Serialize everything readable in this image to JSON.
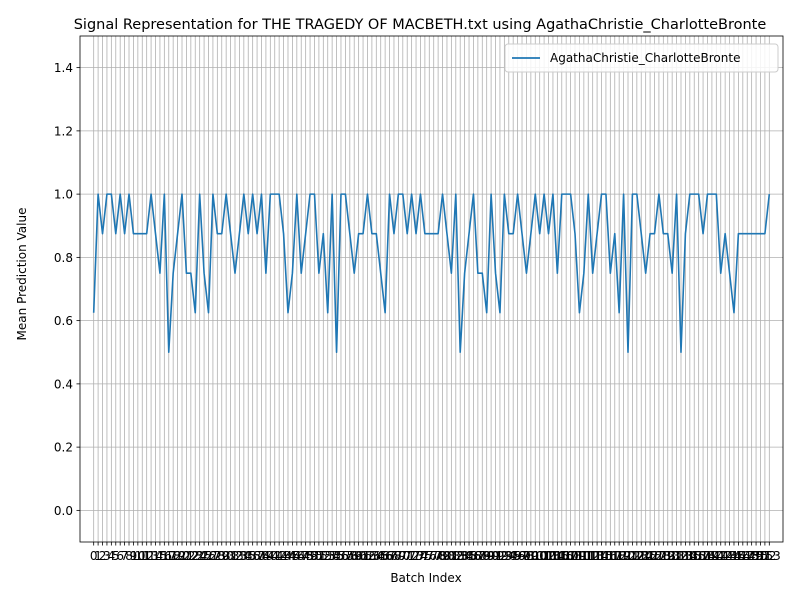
{
  "chart_data": {
    "type": "line",
    "title": "Signal Representation for THE TRAGEDY OF MACBETH.txt using AgathaChristie_CharlotteBronte",
    "xlabel": "Batch Index",
    "ylabel": "Mean Prediction Value",
    "ylim": [
      -0.1,
      1.5
    ],
    "yticks": [
      0.0,
      0.2,
      0.4,
      0.6,
      0.8,
      1.0,
      1.2,
      1.4
    ],
    "xlim": [
      -3.1,
      156.1
    ],
    "grid": true,
    "legend": "top-right",
    "colors": {
      "line": "#1f77b4",
      "grid": "#b0b0b0"
    },
    "xtick_labels_visible": [
      "0",
      "1",
      "2",
      "3",
      "4",
      "5",
      "6",
      "7",
      "8",
      "9",
      "10",
      "11",
      "12",
      "13",
      "14",
      "15",
      "16",
      "17",
      "18",
      "19",
      "20",
      "21",
      "22",
      "23",
      "24",
      "25",
      "26",
      "27",
      "28",
      "29",
      "30",
      "31",
      "32",
      "33",
      "34",
      "35",
      "36",
      "37",
      "38",
      "39",
      "40",
      "41",
      "42",
      "43",
      "44",
      "45",
      "46",
      "47",
      "48",
      "49",
      "50",
      "51",
      "52",
      "53",
      "54",
      "55",
      "56",
      "57",
      "58",
      "59",
      "60",
      "61",
      "62",
      "63",
      "64",
      "65",
      "66",
      "67",
      "68",
      "69",
      "70",
      "71",
      "72",
      "73",
      "74",
      "75",
      "76",
      "77",
      "78",
      "79",
      "80",
      "81",
      "82",
      "83",
      "84",
      "85",
      "86",
      "87",
      "88",
      "89",
      "90",
      "91",
      "92",
      "93",
      "94",
      "95",
      "96",
      "97",
      "98",
      "99",
      "100",
      "101",
      "102",
      "103",
      "104",
      "105",
      "106",
      "107",
      "108",
      "109",
      "110",
      "111",
      "112",
      "113",
      "114",
      "115",
      "116",
      "117",
      "118",
      "119",
      "120",
      "121",
      "122",
      "123",
      "124",
      "125",
      "126",
      "127",
      "128",
      "129",
      "130",
      "131",
      "132",
      "133",
      "134",
      "135",
      "136",
      "137",
      "138",
      "139",
      "140",
      "141",
      "142",
      "143",
      "144",
      "145",
      "146",
      "147",
      "148",
      "149",
      "150",
      "151",
      "152",
      "153"
    ],
    "series": [
      {
        "name": "AgathaChristie_CharlotteBronte",
        "x": [
          0,
          1,
          2,
          3,
          4,
          5,
          6,
          7,
          8,
          9,
          10,
          11,
          12,
          13,
          14,
          15,
          16,
          17,
          18,
          19,
          20,
          21,
          22,
          23,
          24,
          25,
          26,
          27,
          28,
          29,
          30,
          31,
          32,
          33,
          34,
          35,
          36,
          37,
          38,
          39,
          40,
          41,
          42,
          43,
          44,
          45,
          46,
          47,
          48,
          49,
          50,
          51,
          52,
          53,
          54,
          55,
          56,
          57,
          58,
          59,
          60,
          61,
          62,
          63,
          64,
          65,
          66,
          67,
          68,
          69,
          70,
          71,
          72,
          73,
          74,
          75,
          76,
          77,
          78,
          79,
          80,
          81,
          82,
          83,
          84,
          85,
          86,
          87,
          88,
          89,
          90,
          91,
          92,
          93,
          94,
          95,
          96,
          97,
          98,
          99,
          100,
          101,
          102,
          103,
          104,
          105,
          106,
          107,
          108,
          109,
          110,
          111,
          112,
          113,
          114,
          115,
          116,
          117,
          118,
          119,
          120,
          121,
          122,
          123,
          124,
          125,
          126,
          127,
          128,
          129,
          130,
          131,
          132,
          133,
          134,
          135,
          136,
          137,
          138,
          139,
          140,
          141,
          142,
          143,
          144,
          145,
          146,
          147,
          148,
          149,
          150,
          151,
          152,
          153
        ],
        "values": [
          0.625,
          1.0,
          0.875,
          1.0,
          1.0,
          0.875,
          1.0,
          0.875,
          1.0,
          0.875,
          0.875,
          0.875,
          0.875,
          1.0,
          0.875,
          0.75,
          1.0,
          0.5,
          0.75,
          0.875,
          1.0,
          0.75,
          0.75,
          0.625,
          1.0,
          0.75,
          0.625,
          1.0,
          0.875,
          0.875,
          1.0,
          0.875,
          0.75,
          0.875,
          1.0,
          0.875,
          1.0,
          0.875,
          1.0,
          0.75,
          1.0,
          1.0,
          1.0,
          0.875,
          0.625,
          0.75,
          1.0,
          0.75,
          0.875,
          1.0,
          1.0,
          0.75,
          0.875,
          0.625,
          1.0,
          0.5,
          1.0,
          1.0,
          0.875,
          0.75,
          0.875,
          0.875,
          1.0,
          0.875,
          0.875,
          0.75,
          0.625,
          1.0,
          0.875,
          1.0,
          1.0,
          0.875,
          1.0,
          0.875,
          1.0,
          0.875,
          0.875,
          0.875,
          0.875,
          1.0,
          0.875,
          0.75,
          1.0,
          0.5,
          0.75,
          0.875,
          1.0,
          0.75,
          0.75,
          0.625,
          1.0,
          0.75,
          0.625,
          1.0,
          0.875,
          0.875,
          1.0,
          0.875,
          0.75,
          0.875,
          1.0,
          0.875,
          1.0,
          0.875,
          1.0,
          0.75,
          1.0,
          1.0,
          1.0,
          0.875,
          0.625,
          0.75,
          1.0,
          0.75,
          0.875,
          1.0,
          1.0,
          0.75,
          0.875,
          0.625,
          1.0,
          0.5,
          1.0,
          1.0,
          0.875,
          0.75,
          0.875,
          0.875,
          1.0,
          0.875,
          0.875,
          0.75,
          1.0,
          0.5,
          0.875,
          1.0,
          1.0,
          1.0,
          0.875,
          1.0,
          1.0,
          1.0,
          0.75,
          0.875,
          0.75,
          0.625,
          0.875,
          0.875,
          0.875,
          0.875,
          0.875,
          0.875,
          0.875,
          1.0
        ]
      }
    ]
  }
}
